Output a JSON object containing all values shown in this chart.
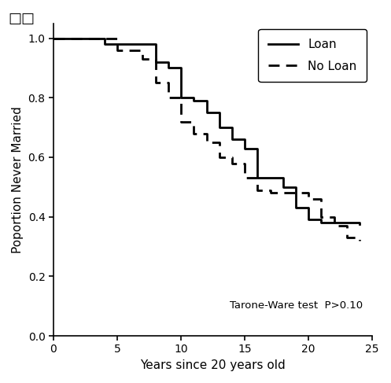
{
  "xlabel": "Years since 20 years old",
  "ylabel": "Poportion Never Married",
  "xlim": [
    0,
    25
  ],
  "ylim": [
    0.0,
    1.05
  ],
  "xticks": [
    0,
    5,
    10,
    15,
    20,
    25
  ],
  "yticks": [
    0.0,
    0.2,
    0.4,
    0.6,
    0.8,
    1.0
  ],
  "annotation": "Tarone-Ware test  P>0.10",
  "loan_x": [
    0,
    4,
    4,
    8,
    8,
    9,
    9,
    10,
    10,
    11,
    11,
    12,
    12,
    13,
    13,
    14,
    14,
    15,
    15,
    16,
    16,
    18,
    18,
    19,
    19,
    20,
    20,
    21,
    21,
    24,
    24
  ],
  "loan_y": [
    1.0,
    1.0,
    0.98,
    0.98,
    0.92,
    0.92,
    0.9,
    0.9,
    0.8,
    0.8,
    0.79,
    0.79,
    0.75,
    0.75,
    0.7,
    0.7,
    0.66,
    0.66,
    0.63,
    0.63,
    0.53,
    0.53,
    0.5,
    0.5,
    0.43,
    0.43,
    0.39,
    0.39,
    0.38,
    0.38,
    0.375
  ],
  "noloan_x": [
    0,
    5,
    5,
    7,
    7,
    8,
    8,
    9,
    9,
    10,
    10,
    11,
    11,
    12,
    12,
    13,
    13,
    14,
    14,
    15,
    15,
    16,
    16,
    17,
    17,
    20,
    20,
    21,
    21,
    22,
    22,
    23,
    23,
    24,
    24
  ],
  "noloan_y": [
    1.0,
    1.0,
    0.96,
    0.96,
    0.93,
    0.93,
    0.85,
    0.85,
    0.8,
    0.8,
    0.72,
    0.72,
    0.68,
    0.68,
    0.65,
    0.65,
    0.6,
    0.6,
    0.58,
    0.58,
    0.53,
    0.53,
    0.49,
    0.49,
    0.48,
    0.48,
    0.46,
    0.46,
    0.4,
    0.4,
    0.37,
    0.37,
    0.33,
    0.33,
    0.32
  ],
  "line_color": "#000000",
  "bg_color": "#ffffff",
  "legend_loan": "Loan",
  "legend_noloan": "No Loan",
  "title_squares": "□□"
}
